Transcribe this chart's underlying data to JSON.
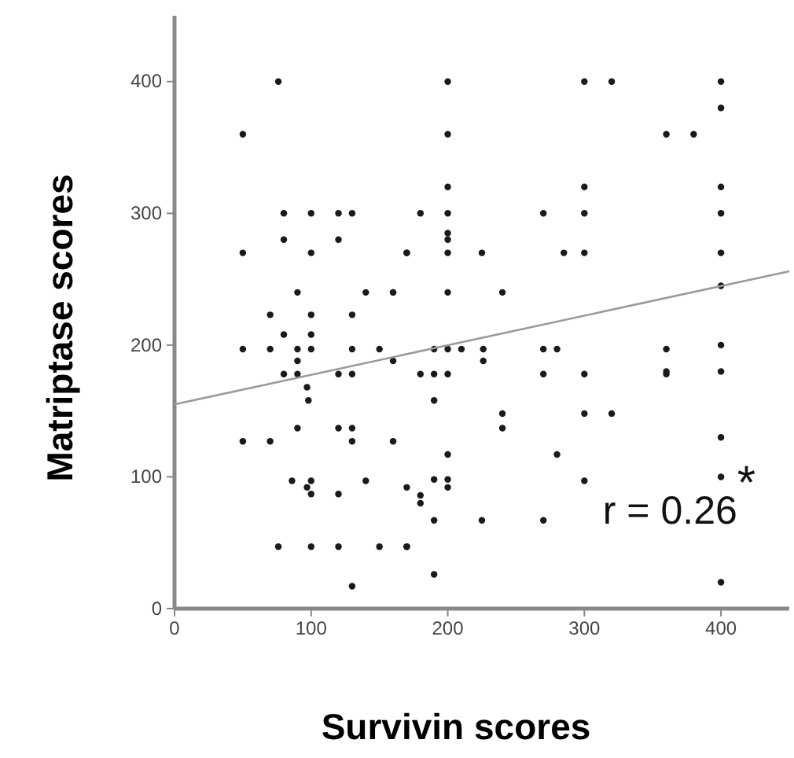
{
  "chart_data": {
    "type": "scatter",
    "xlabel": "Survivin scores",
    "ylabel": "Matriptase scores",
    "xlim": [
      0,
      450
    ],
    "ylim": [
      0,
      450
    ],
    "xticks": [
      0,
      100,
      200,
      300,
      400
    ],
    "yticks": [
      0,
      100,
      200,
      300,
      400
    ],
    "grid": false,
    "annotations": [
      "r = 0.26$^{*}$"
    ],
    "series": [
      {
        "marker": "circle",
        "color": "#1a1a1a",
        "x": [
          76,
          50,
          80,
          100,
          120,
          130,
          80,
          120,
          50,
          100,
          170,
          90,
          140,
          160,
          70,
          100,
          130,
          80,
          100,
          200,
          300,
          320,
          200,
          200,
          300,
          180,
          200,
          270,
          300,
          200,
          200,
          170,
          200,
          225,
          285,
          300,
          160,
          200,
          240,
          380,
          400,
          400,
          400,
          400,
          400,
          360,
          50,
          70,
          90,
          100,
          130,
          150,
          90,
          80,
          90,
          120,
          130,
          160,
          97,
          98,
          90,
          120,
          130,
          50,
          70,
          130,
          160,
          86,
          100,
          97,
          100,
          120,
          140,
          170,
          76,
          100,
          120,
          150,
          170,
          130,
          190,
          200,
          210,
          226,
          270,
          280,
          360,
          226,
          180,
          190,
          200,
          270,
          300,
          360,
          190,
          240,
          240,
          300,
          320,
          200,
          280,
          190,
          200,
          200,
          300,
          180,
          180,
          190,
          225,
          270,
          170,
          190,
          400,
          400,
          400,
          400,
          400,
          360,
          400
        ],
        "values": [
          400,
          360,
          300,
          300,
          300,
          300,
          280,
          280,
          270,
          270,
          270,
          240,
          240,
          240,
          223,
          223,
          223,
          208,
          208,
          400,
          400,
          400,
          360,
          320,
          320,
          300,
          300,
          300,
          300,
          285,
          280,
          270,
          270,
          270,
          270,
          270,
          240,
          240,
          240,
          360,
          400,
          380,
          320,
          300,
          270,
          360,
          197,
          197,
          197,
          197,
          197,
          197,
          188,
          178,
          178,
          178,
          178,
          188,
          168,
          158,
          137,
          137,
          137,
          127,
          127,
          127,
          127,
          97,
          97,
          92,
          87,
          87,
          97,
          92,
          47,
          47,
          47,
          47,
          47,
          17,
          197,
          197,
          197,
          197,
          197,
          197,
          197,
          188,
          178,
          178,
          178,
          178,
          178,
          178,
          158,
          148,
          137,
          148,
          148,
          117,
          117,
          98,
          98,
          92,
          97,
          86,
          80,
          67,
          67,
          67,
          47,
          26,
          245,
          200,
          180,
          130,
          20,
          180,
          100
        ]
      },
      {
        "type": "line",
        "marker": "none",
        "color": "#9a9a9a",
        "x": [
          0,
          450
        ],
        "values": [
          155,
          256
        ]
      }
    ]
  }
}
